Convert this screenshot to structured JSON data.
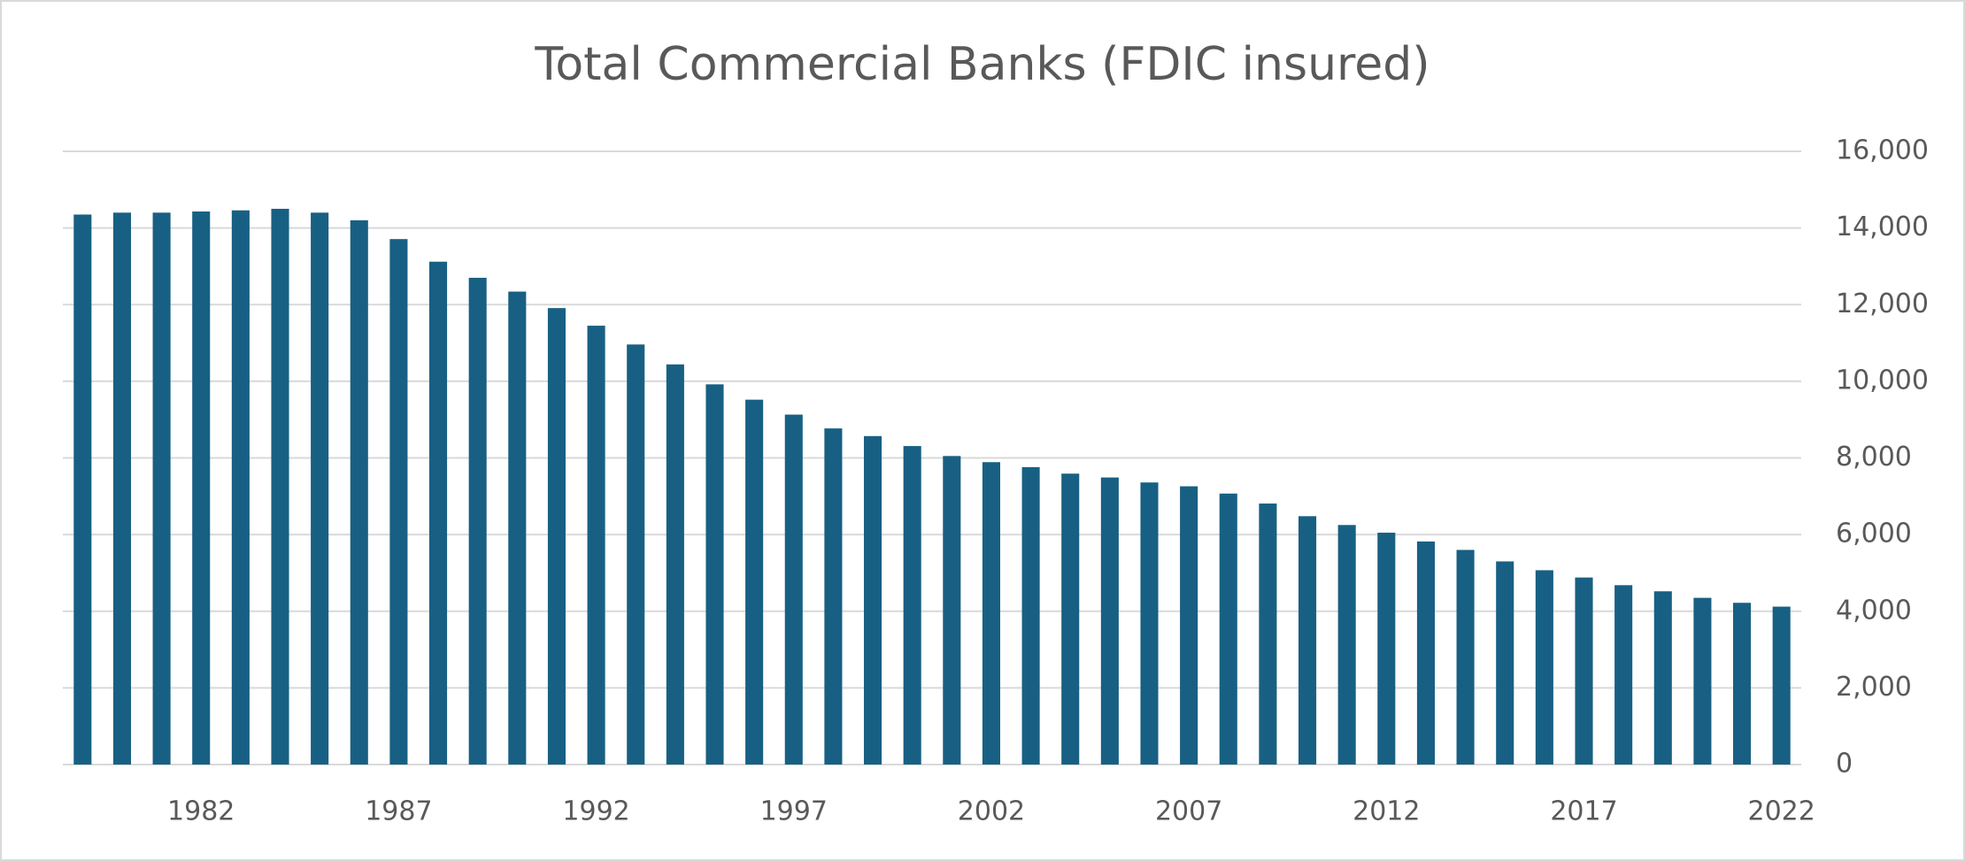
{
  "chart_data": {
    "type": "bar",
    "title": "Total Commercial Banks (FDIC insured)",
    "categories": [
      null,
      null,
      null,
      "1982",
      null,
      null,
      null,
      null,
      "1987",
      null,
      null,
      null,
      null,
      "1992",
      null,
      null,
      null,
      null,
      "1997",
      null,
      null,
      null,
      null,
      "2002",
      null,
      null,
      null,
      null,
      "2007",
      null,
      null,
      null,
      null,
      "2012",
      null,
      null,
      null,
      null,
      "2017",
      null,
      null,
      null,
      null,
      "2022"
    ],
    "values": [
      14350,
      14400,
      14400,
      14430,
      14460,
      14500,
      14400,
      14200,
      13710,
      13120,
      12700,
      12340,
      11910,
      11450,
      10960,
      10440,
      9920,
      9520,
      9130,
      8770,
      8570,
      8310,
      8050,
      7890,
      7760,
      7590,
      7490,
      7360,
      7260,
      7070,
      6810,
      6480,
      6250,
      6050,
      5820,
      5600,
      5300,
      5070,
      4880,
      4680,
      4520,
      4350,
      4220,
      4120
    ],
    "color": "#186083",
    "ylim": [
      0,
      16000
    ],
    "yticks": [
      0,
      {
        "value": 2000,
        "label": "2,000"
      },
      {
        "value": 4000,
        "label": "4,000"
      },
      {
        "value": 6000,
        "label": "6,000"
      },
      {
        "value": 8000,
        "label": "8,000"
      },
      {
        "value": 10000,
        "label": "10,000"
      },
      {
        "value": 12000,
        "label": "12,000"
      },
      {
        "value": 14000,
        "label": "14,000"
      },
      {
        "value": 16000,
        "label": "16,000"
      }
    ],
    "grid": true
  }
}
